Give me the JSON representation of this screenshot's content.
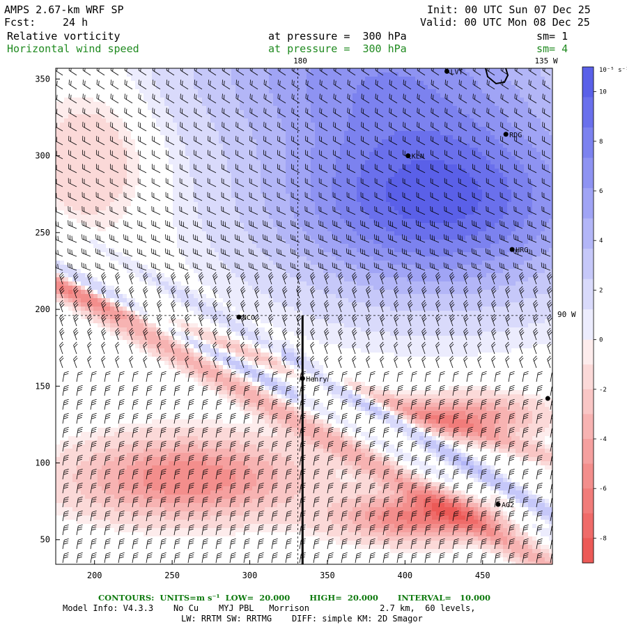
{
  "header": {
    "model_title": "AMPS 2.67-km WRF SP",
    "fcst_label": "Fcst:",
    "fcst_value": "24 h",
    "init_text": "Init: 00 UTC Sun 07 Dec 25",
    "valid_text": "Valid: 00 UTC Mon 08 Dec 25",
    "field1_name": "Relative vorticity",
    "field1_level": "at pressure =  300 hPa",
    "field1_sm": "sm= 1",
    "field2_name": "Horizontal wind speed",
    "field2_level": "at pressure =  300 hPa",
    "field2_sm": "sm= 4"
  },
  "map_labels": {
    "lon_180": "180",
    "lon_135w": "135 W",
    "lat_90w": "90 W"
  },
  "stations": [
    {
      "name": "LVT",
      "x": 427,
      "y": 355
    },
    {
      "name": "RDG",
      "x": 465,
      "y": 314
    },
    {
      "name": "KLN",
      "x": 402,
      "y": 300
    },
    {
      "name": "HRG",
      "x": 469,
      "y": 239
    },
    {
      "name": "NCO",
      "x": 293,
      "y": 195
    },
    {
      "name": "Henry",
      "x": 334,
      "y": 155
    },
    {
      "name": "",
      "x": 492,
      "y": 142
    },
    {
      "name": "AG2",
      "x": 460,
      "y": 73
    }
  ],
  "colorbar": {
    "unit_label": "10⁻⁵ s⁻¹",
    "ticks": [
      "10",
      "8",
      "6",
      "4",
      "2",
      "0",
      "-2",
      "-4",
      "-6",
      "-8"
    ],
    "blue_colors": [
      "#5a60e8",
      "#6a70ec",
      "#7c82ef",
      "#8e93f2",
      "#a0a4f5",
      "#b3b6f7",
      "#c6c8f9",
      "#d9dafb",
      "#ececfd"
    ],
    "red_colors": [
      "#fdecec",
      "#fbd9d8",
      "#f9c6c5",
      "#f7b3b2",
      "#f5a09f",
      "#f38e8c",
      "#f17c7a",
      "#ef6b69",
      "#ec5a57"
    ]
  },
  "chart_data": {
    "type": "heatmap",
    "title": "",
    "xlabel": "",
    "ylabel": "",
    "xlim": [
      175,
      495
    ],
    "ylim": [
      34,
      357
    ],
    "x_ticks": [
      200,
      250,
      300,
      350,
      400,
      450
    ],
    "y_ticks": [
      50,
      100,
      150,
      200,
      250,
      300,
      350
    ],
    "x_tick_labels": [
      "200",
      "250",
      "300",
      "350",
      "400",
      "450"
    ],
    "y_tick_labels": [
      "50",
      "100",
      "150",
      "200",
      "250",
      "300",
      "350"
    ],
    "cross_section_x": 334,
    "cross_section_y_range": [
      34,
      196
    ],
    "dashed_lon_x": 331,
    "dashed_lat_y": 196,
    "colorbar_range": [
      -9,
      11
    ]
  },
  "footer": {
    "contours_line": "CONTOURS:  UNITS=m s⁻¹  LOW=  20.000       HIGH=  20.000       INTERVAL=   10.000",
    "model_info_line": "Model Info: V4.3.3    No Cu    MYJ PBL   Morrison              2.7 km,  60 levels,",
    "physics_line": "LW: RRTM SW: RRTMG    DIFF: simple KM: 2D Smagor"
  }
}
